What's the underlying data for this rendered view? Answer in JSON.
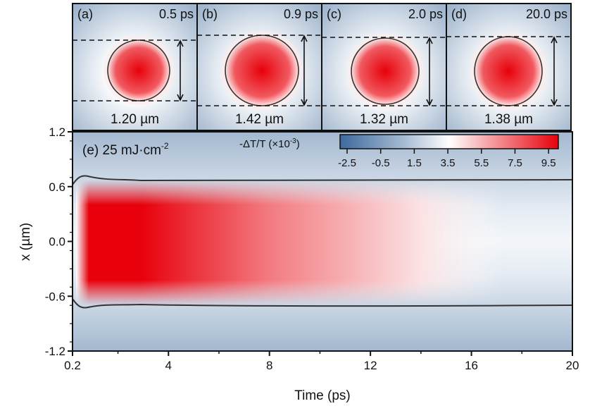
{
  "colors": {
    "low": "#3d6a9e",
    "mid": "#ffffff",
    "high": "#e8000b",
    "contour": "#333333"
  },
  "panels": [
    {
      "label": "(a)",
      "time": "0.5 ps",
      "width": "1.20 µm"
    },
    {
      "label": "(b)",
      "time": "0.9 ps",
      "width": "1.42 µm"
    },
    {
      "label": "(c)",
      "time": "2.0 ps",
      "width": "1.32 µm"
    },
    {
      "label": "(d)",
      "time": "20.0 ps",
      "width": "1.38 µm"
    }
  ],
  "chart_data": {
    "type": "heatmap",
    "panel_label": "(e)",
    "fluence": "25 mJ·cm",
    "fluence_exp": "-2",
    "xlabel": "Time (ps)",
    "ylabel": "x (µm)",
    "xlim": [
      0.2,
      20
    ],
    "ylim": [
      -1.2,
      1.2
    ],
    "xticks": [
      "0.2",
      "4",
      "8",
      "12",
      "16",
      "20"
    ],
    "xtick_values": [
      0.2,
      4,
      8,
      12,
      16,
      20
    ],
    "yticks": [
      "1.2",
      "0.6",
      "0.0",
      "-0.6",
      "-1.2"
    ],
    "ytick_values": [
      1.2,
      0.6,
      0.0,
      -0.6,
      -1.2
    ],
    "colorbar": {
      "label": "-ΔT/T (×10",
      "label_exp": "-3",
      "label_end": ")",
      "range": [
        -2.5,
        10.5
      ],
      "ticks": [
        "-2.5",
        "-0.5",
        "1.5",
        "3.5",
        "5.5",
        "7.5",
        "9.5"
      ]
    },
    "contour_x": [
      0.68,
      -0.68
    ],
    "peak_time": 1.2
  }
}
